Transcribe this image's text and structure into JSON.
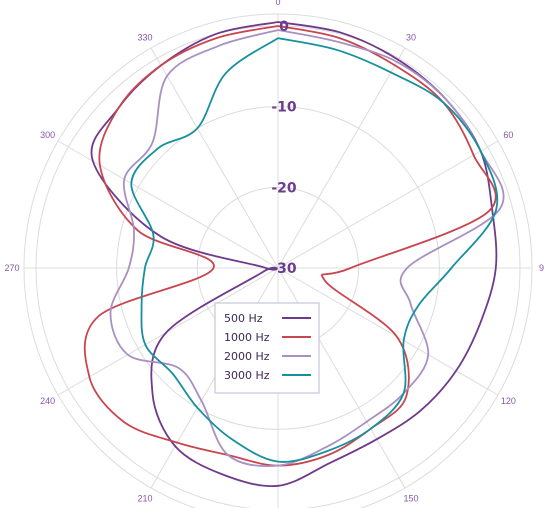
{
  "chart_data": {
    "type": "polar-line",
    "radial_axis": {
      "ticks": [
        0,
        -10,
        -20,
        -30
      ],
      "range": [
        -30,
        0
      ]
    },
    "angular_axis": {
      "ticks": [
        0,
        30,
        60,
        90,
        120,
        150,
        210,
        240,
        270,
        300,
        330
      ],
      "tick_labels": [
        "0",
        "30",
        "60",
        "90",
        "120",
        "150",
        "210",
        "240",
        "270",
        "300",
        "330"
      ],
      "direction": "clockwise",
      "zero_at": "top"
    },
    "grid": true,
    "legend_position": "lower-center",
    "series": [
      {
        "name": "500 Hz",
        "color": "#6e3a8c",
        "angles": [
          0,
          15,
          30,
          45,
          60,
          75,
          90,
          105,
          120,
          135,
          150,
          165,
          180,
          195,
          210,
          225,
          240,
          255,
          270,
          285,
          300,
          315,
          330,
          345,
          360
        ],
        "values": [
          0.5,
          0.2,
          -0.2,
          -0.5,
          -1.0,
          -2.5,
          -3.0,
          -4.0,
          -4.5,
          -5.0,
          -5.5,
          -5.0,
          -3.0,
          -3.5,
          -4.5,
          -8.0,
          -14.0,
          -28.0,
          -28.5,
          -15.0,
          -3.5,
          -2.0,
          -1.0,
          0.0,
          0.5
        ]
      },
      {
        "name": "1000 Hz",
        "color": "#c8464f",
        "angles": [
          0,
          15,
          30,
          45,
          60,
          75,
          90,
          105,
          120,
          135,
          150,
          165,
          180,
          195,
          210,
          225,
          240,
          255,
          270,
          285,
          300,
          315,
          330,
          345,
          360
        ],
        "values": [
          0.0,
          -0.5,
          -1.0,
          -1.0,
          -2.0,
          -3.0,
          -21.0,
          -24.0,
          -13.0,
          -7.5,
          -7.0,
          -6.0,
          -5.5,
          -6.0,
          -5.0,
          -3.0,
          -3.0,
          -7.0,
          -22.0,
          -12.0,
          -4.5,
          -2.0,
          -1.0,
          -0.5,
          0.0
        ]
      },
      {
        "name": "2000 Hz",
        "color": "#a98fc2",
        "angles": [
          0,
          15,
          30,
          45,
          60,
          75,
          90,
          105,
          120,
          135,
          150,
          165,
          180,
          195,
          210,
          225,
          240,
          255,
          270,
          285,
          300,
          315,
          330,
          345,
          360
        ],
        "values": [
          -0.5,
          -1.0,
          -0.5,
          -0.5,
          -1.0,
          -1.5,
          -14.0,
          -13.0,
          -8.5,
          -8.0,
          -8.0,
          -7.0,
          -5.5,
          -6.0,
          -11.0,
          -12.5,
          -8.5,
          -8.5,
          -11.5,
          -11.5,
          -8.0,
          -8.0,
          -2.5,
          -1.5,
          -0.5
        ]
      },
      {
        "name": "3000 Hz",
        "color": "#16909f",
        "angles": [
          0,
          15,
          30,
          45,
          60,
          75,
          90,
          105,
          120,
          135,
          150,
          165,
          180,
          195,
          210,
          225,
          240,
          255,
          270,
          285,
          300,
          315,
          330,
          345,
          360
        ],
        "values": [
          -1.5,
          -2.0,
          -2.0,
          -1.0,
          -1.0,
          -2.0,
          -8.5,
          -12.0,
          -12.0,
          -8.0,
          -7.0,
          -6.5,
          -6.0,
          -8.0,
          -10.0,
          -11.5,
          -11.0,
          -12.5,
          -13.5,
          -14.0,
          -9.0,
          -9.0,
          -10.0,
          -5.0,
          -1.5
        ]
      }
    ]
  }
}
